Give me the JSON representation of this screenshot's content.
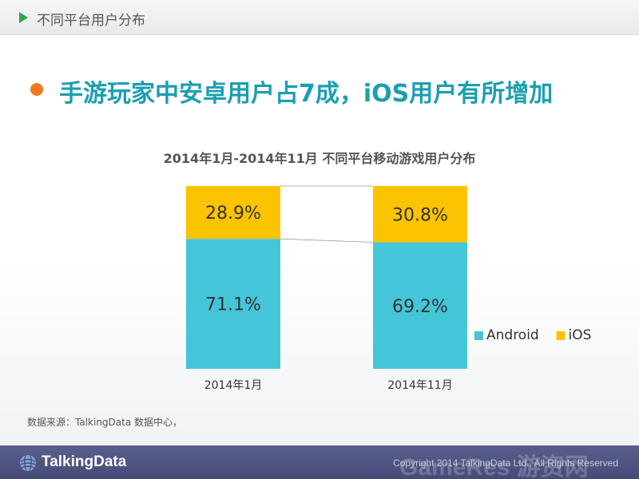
{
  "header": {
    "section_label": "不同平台用户分布"
  },
  "headline": {
    "text": "手游玩家中安卓用户占7成，iOS用户有所增加"
  },
  "chart_data": {
    "type": "bar",
    "stacked": true,
    "percent": true,
    "title": "2014年1月-2014年11月 不同平台移动游戏用户分布",
    "categories": [
      "2014年1月",
      "2014年11月"
    ],
    "series": [
      {
        "name": "Android",
        "values": [
          71.1,
          69.2
        ],
        "labels": [
          "71.1%",
          "69.2%"
        ],
        "color": "#45c6d8"
      },
      {
        "name": "iOS",
        "values": [
          28.9,
          30.8
        ],
        "labels": [
          "28.9%",
          "30.8%"
        ],
        "color": "#fbc300"
      }
    ],
    "ylim": [
      0,
      100
    ],
    "grid": false,
    "legend": "right",
    "connector_lines": true
  },
  "source": {
    "text": "数据来源：TalkingData 数据中心，"
  },
  "footer": {
    "logo_text": "TalkingData",
    "copyright": "Copyright 2014 TalkingData Ltd., All Rights Reserved",
    "watermark": "GameRes 游资网"
  }
}
